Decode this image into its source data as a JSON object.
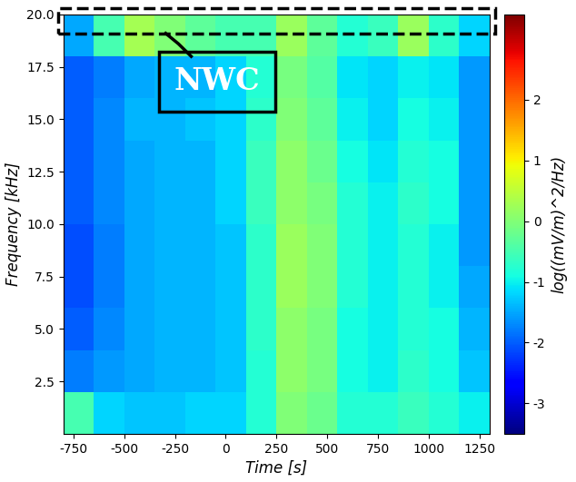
{
  "chart_data": {
    "type": "heatmap",
    "xlabel": "Time [s]",
    "ylabel": "Frequency [kHz]",
    "colorbar_label": "log((mV/m)^2/Hz)",
    "xlim": [
      -800,
      1300
    ],
    "xticks": [
      -750,
      -500,
      -250,
      0,
      250,
      500,
      750,
      1000,
      1250
    ],
    "ylim": [
      0,
      20
    ],
    "yticks": [
      {
        "value": 2.5,
        "label": "2.5"
      },
      {
        "value": 5,
        "label": "5.0"
      },
      {
        "value": 7.5,
        "label": "7.5"
      },
      {
        "value": 10,
        "label": "10.0"
      },
      {
        "value": 12.5,
        "label": "12.5"
      },
      {
        "value": 15,
        "label": "15.0"
      },
      {
        "value": 17.5,
        "label": "17.5"
      },
      {
        "value": 20,
        "label": "20.0"
      }
    ],
    "x_edges": [
      -800,
      -650,
      -500,
      -350,
      -200,
      -50,
      100,
      250,
      400,
      550,
      700,
      850,
      1000,
      1150,
      1300
    ],
    "y_edges": [
      0,
      2,
      4,
      6,
      8,
      10,
      12,
      14,
      16,
      18,
      20
    ],
    "cells": [
      [
        -0.5,
        -1.2,
        -1.3,
        -1.3,
        -1.2,
        -1.2,
        -0.8,
        0.0,
        -0.2,
        -0.8,
        -0.8,
        -0.6,
        -0.8,
        -1.0
      ],
      [
        -1.8,
        -1.6,
        -1.5,
        -1.4,
        -1.4,
        -1.3,
        -0.8,
        0.1,
        -0.1,
        -0.9,
        -1.0,
        -0.7,
        -0.9,
        -1.3
      ],
      [
        -2.0,
        -1.7,
        -1.5,
        -1.4,
        -1.4,
        -1.3,
        -0.7,
        0.1,
        -0.1,
        -0.9,
        -1.0,
        -0.8,
        -0.9,
        -1.4
      ],
      [
        -2.1,
        -1.8,
        -1.5,
        -1.4,
        -1.4,
        -1.3,
        -0.7,
        0.2,
        0.0,
        -0.8,
        -1.0,
        -0.8,
        -1.0,
        -1.5
      ],
      [
        -2.1,
        -1.8,
        -1.5,
        -1.4,
        -1.4,
        -1.3,
        -0.7,
        0.2,
        0.0,
        -0.8,
        -1.0,
        -0.8,
        -1.0,
        -1.6
      ],
      [
        -2.0,
        -1.7,
        -1.5,
        -1.4,
        -1.4,
        -1.2,
        -0.6,
        0.1,
        -0.1,
        -0.8,
        -1.0,
        -0.7,
        -0.9,
        -1.6
      ],
      [
        -2.0,
        -1.7,
        -1.5,
        -1.4,
        -1.4,
        -1.2,
        -0.6,
        0.1,
        -0.2,
        -0.9,
        -1.1,
        -0.8,
        -0.9,
        -1.6
      ],
      [
        -2.0,
        -1.7,
        -1.4,
        -1.4,
        -1.3,
        -1.2,
        -0.7,
        0.0,
        -0.3,
        -1.0,
        -1.2,
        -0.9,
        -1.0,
        -1.6
      ],
      [
        -2.0,
        -1.8,
        -1.5,
        -1.4,
        -1.4,
        -1.2,
        -0.8,
        -0.1,
        -0.4,
        -1.1,
        -1.2,
        -1.0,
        -1.1,
        -1.6
      ],
      [
        -1.5,
        -0.5,
        0.3,
        0.0,
        -0.3,
        -0.5,
        -0.5,
        0.2,
        -0.3,
        -0.8,
        -0.6,
        0.2,
        -0.7,
        -1.2
      ]
    ],
    "clim": [
      -3.5,
      3.4
    ],
    "cticks": [
      -3,
      -2,
      -1,
      0,
      1,
      2
    ],
    "annotations": [
      {
        "text": "NWC"
      }
    ]
  }
}
